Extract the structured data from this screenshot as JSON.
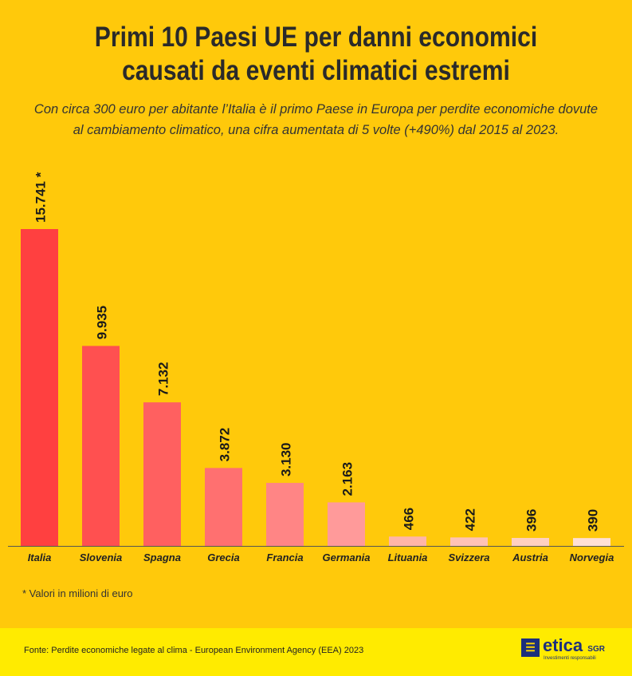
{
  "title_line1": "Primi 10 Paesi UE per danni economici",
  "title_line2": "causati da eventi climatici estremi",
  "subtitle_line1": "Con circa 300 euro per abitante l’Italia è il primo Paese in Europa per perdite economiche dovute",
  "subtitle_line2": "al cambiamento climatico, una cifra aumentata di 5 volte (+490%) dal 2015 al 2023.",
  "note": "* Valori in milioni di euro",
  "source": "Fonte: Perdite economiche legate al clima - European Environment Agency (EEA) 2023",
  "logo": {
    "name": "etica",
    "suffix": "SGR",
    "tagline": "Investimenti responsabili"
  },
  "chart_data": {
    "type": "bar",
    "title": "Primi 10 Paesi UE per danni economici causati da eventi climatici estremi",
    "unit": "milioni di euro",
    "categories": [
      "Italia",
      "Slovenia",
      "Spagna",
      "Grecia",
      "Francia",
      "Germania",
      "Lituania",
      "Svizzera",
      "Austria",
      "Norvegia"
    ],
    "values": [
      15741,
      9935,
      7132,
      3872,
      3130,
      2163,
      466,
      422,
      396,
      390
    ],
    "labels": [
      "15.741 *",
      "9.935",
      "7.132",
      "3.872",
      "3.130",
      "2.163",
      "466",
      "422",
      "396",
      "390"
    ],
    "colors": [
      "#FF4040",
      "#FF5050",
      "#FF6060",
      "#FF7070",
      "#FF8585",
      "#FF9A9A",
      "#FFB5A8",
      "#FFC2B5",
      "#FFD0C0",
      "#FFE0D5"
    ],
    "ylim": [
      0,
      15741
    ],
    "grid": false
  }
}
